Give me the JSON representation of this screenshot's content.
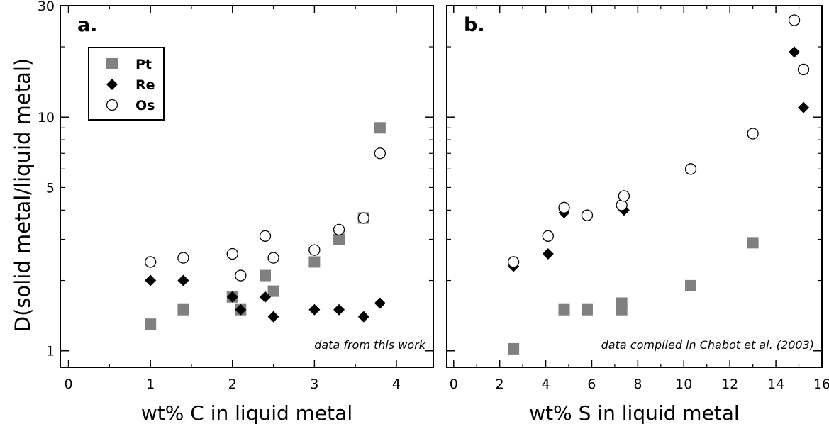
{
  "ylabel": "D(solid metal/liquid metal)",
  "colors": {
    "pt": "#808080",
    "re": "#000000",
    "os": "#ffffff"
  },
  "legend": [
    {
      "label": "Pt",
      "marker": "square"
    },
    {
      "label": "Re",
      "marker": "diamond"
    },
    {
      "label": "Os",
      "marker": "circle"
    }
  ],
  "chart_data": [
    {
      "type": "scatter",
      "panel_label": "a.",
      "xlabel": "wt% C in liquid metal",
      "ylabel": "D(solid metal/liquid metal)",
      "annotation": "data from this work",
      "yscale": "log",
      "xlim": [
        -0.1,
        4.45
      ],
      "ylim": [
        0.85,
        30
      ],
      "xticks": [
        0,
        1,
        2,
        3,
        4
      ],
      "yticks": [
        1,
        5,
        10,
        30
      ],
      "legend_position": "top-left",
      "grid": false,
      "series": [
        {
          "name": "Pt",
          "marker": "square",
          "points": [
            [
              1.0,
              1.3
            ],
            [
              1.4,
              1.5
            ],
            [
              2.0,
              1.7
            ],
            [
              2.1,
              1.5
            ],
            [
              2.4,
              2.1
            ],
            [
              2.5,
              1.8
            ],
            [
              3.0,
              2.4
            ],
            [
              3.3,
              3.0
            ],
            [
              3.6,
              3.7
            ],
            [
              3.8,
              9.0
            ]
          ]
        },
        {
          "name": "Re",
          "marker": "diamond",
          "points": [
            [
              1.0,
              2.0
            ],
            [
              1.4,
              2.0
            ],
            [
              2.0,
              1.7
            ],
            [
              2.1,
              1.5
            ],
            [
              2.4,
              1.7
            ],
            [
              2.5,
              1.4
            ],
            [
              3.0,
              1.5
            ],
            [
              3.3,
              1.5
            ],
            [
              3.6,
              1.4
            ],
            [
              3.8,
              1.6
            ]
          ]
        },
        {
          "name": "Os",
          "marker": "circle",
          "points": [
            [
              1.0,
              2.4
            ],
            [
              1.4,
              2.5
            ],
            [
              2.0,
              2.6
            ],
            [
              2.1,
              2.1
            ],
            [
              2.4,
              3.1
            ],
            [
              2.5,
              2.5
            ],
            [
              3.0,
              2.7
            ],
            [
              3.3,
              3.3
            ],
            [
              3.6,
              3.7
            ],
            [
              3.8,
              7.0
            ]
          ]
        }
      ]
    },
    {
      "type": "scatter",
      "panel_label": "b.",
      "xlabel": "wt% S in liquid metal",
      "annotation": "data compiled in Chabot et al. (2003)",
      "yscale": "log",
      "xlim": [
        -0.3,
        16.0
      ],
      "ylim": [
        0.85,
        30
      ],
      "xticks": [
        0,
        2,
        4,
        6,
        8,
        10,
        12,
        14,
        16
      ],
      "yticks": [
        1,
        5,
        10,
        30
      ],
      "grid": false,
      "series": [
        {
          "name": "Pt",
          "marker": "square",
          "points": [
            [
              2.6,
              1.02
            ],
            [
              4.8,
              1.5
            ],
            [
              5.8,
              1.5
            ],
            [
              7.3,
              1.5
            ],
            [
              7.3,
              1.6
            ],
            [
              10.3,
              1.9
            ],
            [
              13.0,
              2.9
            ]
          ]
        },
        {
          "name": "Re",
          "marker": "diamond",
          "points": [
            [
              2.6,
              2.3
            ],
            [
              4.1,
              2.6
            ],
            [
              4.8,
              3.9
            ],
            [
              7.4,
              4.0
            ],
            [
              14.8,
              19.0
            ],
            [
              15.2,
              11.0
            ]
          ]
        },
        {
          "name": "Os",
          "marker": "circle",
          "points": [
            [
              2.6,
              2.4
            ],
            [
              4.1,
              3.1
            ],
            [
              4.8,
              4.1
            ],
            [
              5.8,
              3.8
            ],
            [
              7.3,
              4.2
            ],
            [
              7.4,
              4.6
            ],
            [
              10.3,
              6.0
            ],
            [
              13.0,
              8.5
            ],
            [
              14.8,
              26.0
            ],
            [
              15.2,
              16.0
            ]
          ]
        }
      ]
    }
  ]
}
